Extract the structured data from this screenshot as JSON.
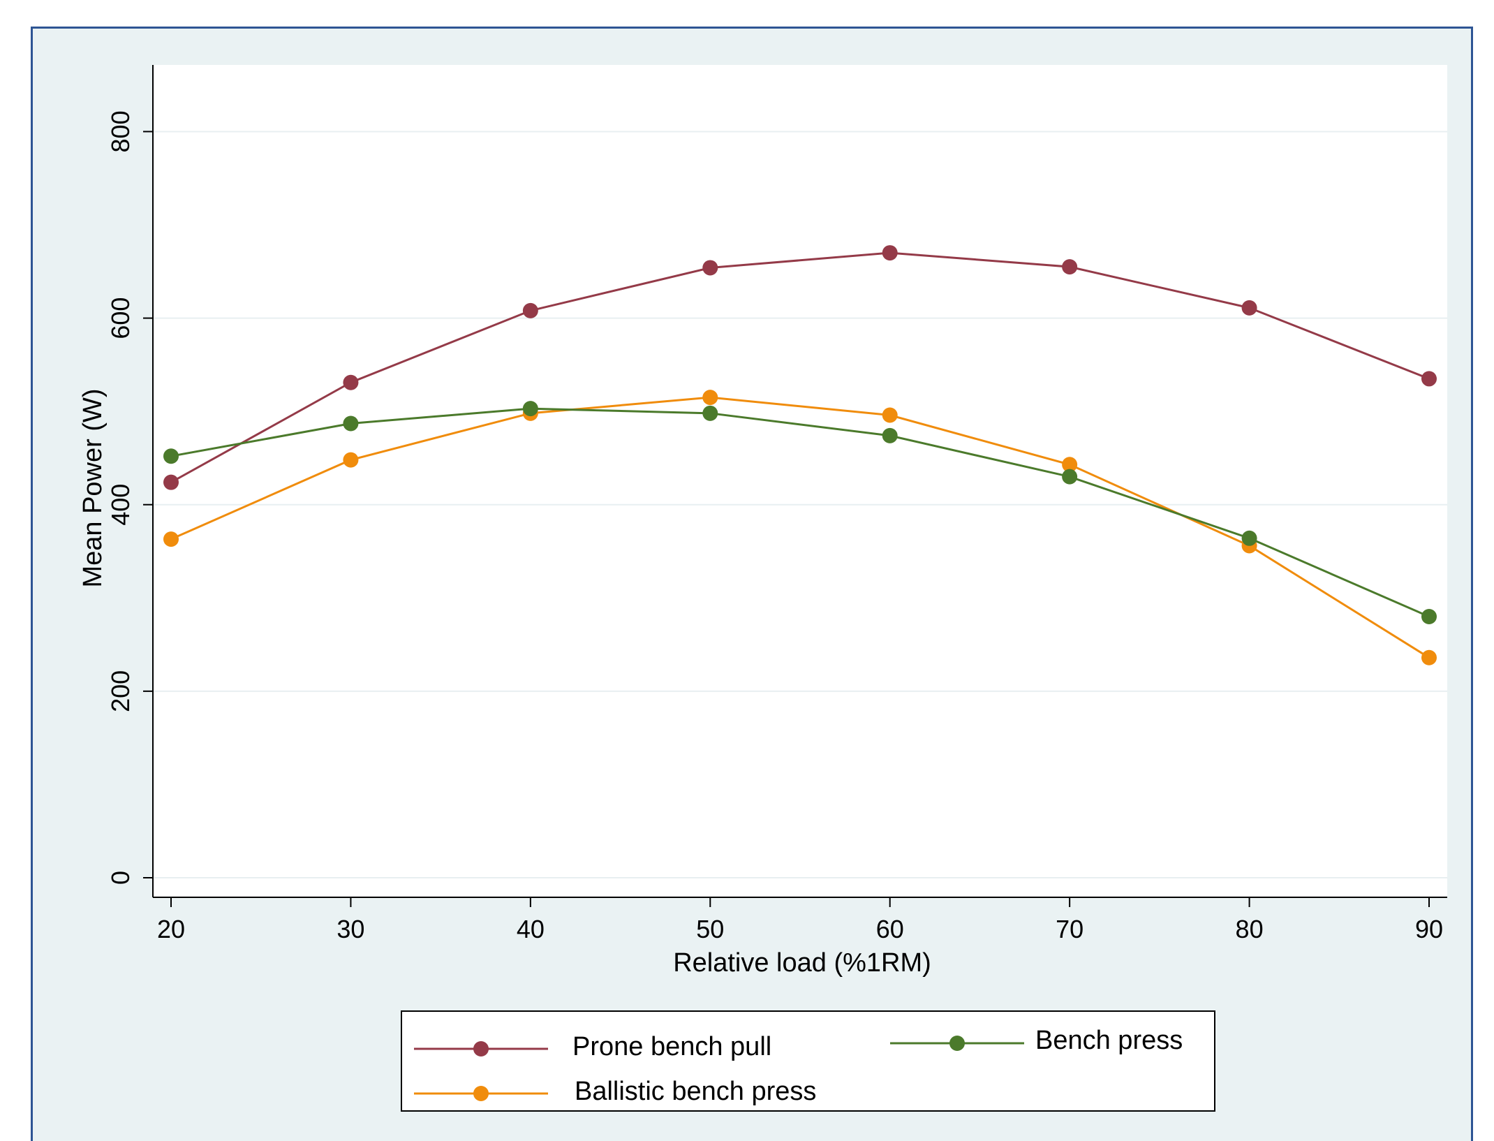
{
  "chart_data": {
    "type": "line",
    "title": "",
    "xlabel": "Relative load (%1RM)",
    "ylabel": "Mean Power (W)",
    "x": [
      20,
      30,
      40,
      50,
      60,
      70,
      80,
      90
    ],
    "xticks": [
      "20",
      "30",
      "40",
      "50",
      "60",
      "70",
      "80",
      "90"
    ],
    "yticks": [
      "0",
      "200",
      "400",
      "600",
      "800"
    ],
    "xlim": [
      19,
      91
    ],
    "ylim": [
      -20,
      872
    ],
    "grid": true,
    "legend_position": "bottom",
    "series": [
      {
        "name": "Prone bench pull",
        "color": "#943a48",
        "values": [
          424,
          531,
          608,
          654,
          670,
          655,
          611,
          535
        ]
      },
      {
        "name": "Bench press",
        "color": "#4b7a2b",
        "values": [
          452,
          487,
          503,
          498,
          474,
          430,
          364,
          280
        ]
      },
      {
        "name": "Ballistic bench press",
        "color": "#f08c0c",
        "values": [
          363,
          448,
          498,
          515,
          496,
          443,
          356,
          236
        ]
      }
    ]
  },
  "colors": {
    "frame_border": "#2e5594",
    "frame_background": "#eaf2f3",
    "plot_background": "#ffffff",
    "gridline": "#e8eff1",
    "axis": "#000000"
  }
}
